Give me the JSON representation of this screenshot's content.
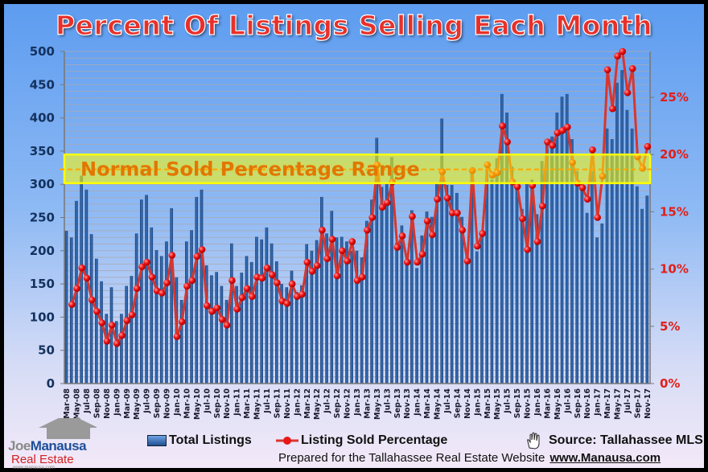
{
  "title": "Percent Of Listings Selling Each Month",
  "chart_data": {
    "type": "bar+line",
    "title": "Percent Of Listings Selling Each Month",
    "categories": [
      "Mar-08",
      "Apr-08",
      "May-08",
      "Jun-08",
      "Jul-08",
      "Aug-08",
      "Sep-08",
      "Oct-08",
      "Nov-08",
      "Dec-08",
      "Jan-09",
      "Feb-09",
      "Mar-09",
      "Apr-09",
      "May-09",
      "Jun-09",
      "Jul-09",
      "Aug-09",
      "Sep-09",
      "Oct-09",
      "Nov-09",
      "Dec-09",
      "Jan-10",
      "Feb-10",
      "Mar-10",
      "Apr-10",
      "May-10",
      "Jun-10",
      "Jul-10",
      "Aug-10",
      "Sep-10",
      "Oct-10",
      "Nov-10",
      "Dec-10",
      "Jan-11",
      "Feb-11",
      "Mar-11",
      "Apr-11",
      "May-11",
      "Jun-11",
      "Jul-11",
      "Aug-11",
      "Sep-11",
      "Oct-11",
      "Nov-11",
      "Dec-11",
      "Jan-12",
      "Feb-12",
      "Mar-12",
      "Apr-12",
      "May-12",
      "Jun-12",
      "Jul-12",
      "Aug-12",
      "Sep-12",
      "Oct-12",
      "Nov-12",
      "Dec-12",
      "Jan-13",
      "Feb-13",
      "Mar-13",
      "Apr-13",
      "May-13",
      "Jun-13",
      "Jul-13",
      "Aug-13",
      "Sep-13",
      "Oct-13",
      "Nov-13",
      "Dec-13",
      "Jan-14",
      "Feb-14",
      "Mar-14",
      "Apr-14",
      "May-14",
      "Jun-14",
      "Jul-14",
      "Aug-14",
      "Sep-14",
      "Oct-14",
      "Nov-14",
      "Dec-14",
      "Jan-15",
      "Feb-15",
      "Mar-15",
      "Apr-15",
      "May-15",
      "Jun-15",
      "Jul-15",
      "Aug-15",
      "Sep-15",
      "Oct-15",
      "Nov-15",
      "Dec-15",
      "Jan-16",
      "Feb-16",
      "Mar-16",
      "Apr-16",
      "May-16",
      "Jun-16",
      "Jul-16",
      "Aug-16",
      "Sep-16",
      "Oct-16",
      "Nov-16",
      "Dec-16",
      "Jan-17",
      "Feb-17",
      "Mar-17",
      "Apr-17",
      "May-17",
      "Jun-17",
      "Jul-17",
      "Aug-17",
      "Sep-17",
      "Oct-17",
      "Nov-17"
    ],
    "series": [
      {
        "name": "Total Listings",
        "type": "bar",
        "axis": "left",
        "color": "#1f4f8f",
        "values": [
          230,
          220,
          275,
          313,
          292,
          225,
          188,
          154,
          105,
          145,
          94,
          105,
          147,
          162,
          226,
          277,
          284,
          235,
          201,
          192,
          214,
          264,
          160,
          126,
          214,
          231,
          281,
          292,
          178,
          163,
          168,
          147,
          126,
          211,
          147,
          167,
          192,
          183,
          221,
          217,
          235,
          211,
          184,
          150,
          145,
          170,
          138,
          148,
          210,
          200,
          216,
          281,
          226,
          260,
          220,
          221,
          214,
          200,
          200,
          190,
          245,
          277,
          370,
          296,
          303,
          341,
          212,
          238,
          186,
          261,
          174,
          223,
          259,
          251,
          303,
          399,
          299,
          299,
          287,
          251,
          202,
          320,
          199,
          223,
          323,
          307,
          339,
          436,
          408,
          327,
          295,
          263,
          303,
          307,
          255,
          335,
          364,
          372,
          408,
          432,
          436,
          368,
          320,
          303,
          257,
          320,
          220,
          241,
          384,
          368,
          453,
          472,
          412,
          384,
          297,
          263,
          283
        ]
      },
      {
        "name": "Listing Sold Percentage",
        "type": "line",
        "axis": "right",
        "color": "#d8362e",
        "unit": "%",
        "values": [
          null,
          6.9,
          8.3,
          10.1,
          9.2,
          7.3,
          6.3,
          5.3,
          3.7,
          5.1,
          3.5,
          4.2,
          5.5,
          6.0,
          8.3,
          10.2,
          10.6,
          9.3,
          8.1,
          7.9,
          8.8,
          11.2,
          4.1,
          5.4,
          8.5,
          9.0,
          11.1,
          11.7,
          6.8,
          6.3,
          6.6,
          5.6,
          5.1,
          9.0,
          6.5,
          7.5,
          8.3,
          7.6,
          9.3,
          9.2,
          10.1,
          9.5,
          8.8,
          7.2,
          7.0,
          8.7,
          7.6,
          7.8,
          10.6,
          9.8,
          10.3,
          13.4,
          10.9,
          12.6,
          9.4,
          11.6,
          10.7,
          12.4,
          9.0,
          9.3,
          13.4,
          14.5,
          19.1,
          15.4,
          15.8,
          17.6,
          11.9,
          12.9,
          10.6,
          14.6,
          10.6,
          11.3,
          14.2,
          13.0,
          16.1,
          18.5,
          16.2,
          14.9,
          14.9,
          13.4,
          10.7,
          18.6,
          12.0,
          13.1,
          19.1,
          18.2,
          18.4,
          22.5,
          21.1,
          17.6,
          17.2,
          14.4,
          11.7,
          17.3,
          12.4,
          15.5,
          21.1,
          20.8,
          21.9,
          22.1,
          22.4,
          19.3,
          17.5,
          17.1,
          16.1,
          20.4,
          14.5,
          18.1,
          27.4,
          24.0,
          28.6,
          29.0,
          25.4,
          27.5,
          19.8,
          18.8,
          20.7
        ]
      }
    ],
    "y_left": {
      "range": [
        0,
        500
      ],
      "ticks": [
        0,
        50,
        100,
        150,
        200,
        250,
        300,
        350,
        400,
        450,
        500
      ],
      "minor_grid_step": 10
    },
    "y_right": {
      "range": [
        0,
        29
      ],
      "ticks": [
        0,
        5,
        10,
        15,
        20,
        25
      ],
      "tick_labels": [
        "0%",
        "5%",
        "10%",
        "15%",
        "20%",
        "25%"
      ]
    },
    "x_tick_labels_every": 2,
    "annotation": {
      "label": "Normal Sold Percentage Range",
      "range_percent": [
        17.5,
        20.0
      ],
      "reference_percent": 18.7,
      "band_color": "#ffff00",
      "line_color": "#ffa500"
    },
    "grid": true,
    "legend_placement": "bottom"
  },
  "legend": {
    "bars_label": "Total Listings",
    "line_label": "Listing Sold Percentage"
  },
  "source": "Source: Tallahassee MLS",
  "footer": {
    "prepared": "Prepared for the Tallahassee Real Estate Website",
    "url": "www.Manausa.com"
  },
  "logo": {
    "line1a": "Joe",
    "line1b": "Manausa",
    "line2": "Real Estate",
    "line3": "www.manausa.com"
  }
}
